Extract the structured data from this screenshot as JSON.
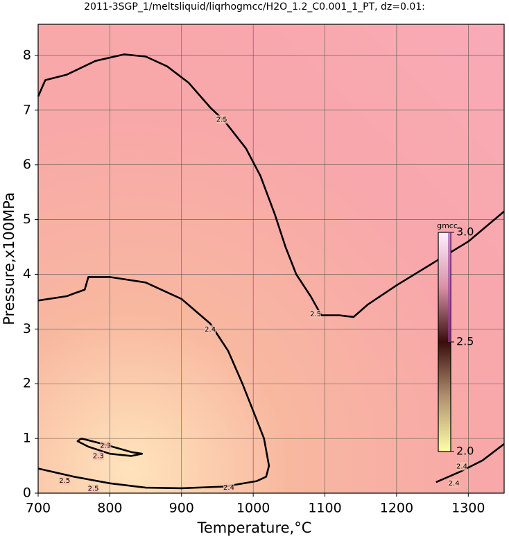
{
  "chart_data": {
    "type": "contour",
    "title": "2011-3SGP_1/meltsliquid/liqrhogmcc/H2O_1.2_C0.001_1_PT, dz=0.01:",
    "x_label": "Temperature,°C",
    "y_label": "Pressure,x100MPa",
    "xlim": [
      700,
      1350
    ],
    "ylim": [
      0,
      8.57
    ],
    "xticks": [
      700,
      800,
      900,
      1000,
      1100,
      1200,
      1300
    ],
    "yticks": [
      0,
      1,
      2,
      3,
      4,
      5,
      6,
      7,
      8
    ],
    "grid": true,
    "contours": [
      {
        "level": 2.5,
        "x": [
          700,
          710,
          740,
          780,
          820,
          850,
          880,
          910,
          940,
          960,
          990,
          1010,
          1030,
          1045,
          1060,
          1080,
          1095,
          1120,
          1140,
          1160,
          1200,
          1250,
          1300,
          1350
        ],
        "y": [
          7.25,
          7.55,
          7.65,
          7.9,
          8.02,
          7.98,
          7.8,
          7.5,
          7.05,
          6.8,
          6.3,
          5.8,
          5.1,
          4.5,
          4.0,
          3.6,
          3.25,
          3.25,
          3.22,
          3.45,
          3.8,
          4.2,
          4.6,
          5.15
        ]
      },
      {
        "level": 2.4,
        "x": [
          700,
          740,
          750,
          765,
          770,
          800,
          850,
          900,
          940,
          965,
          985,
          1000,
          1015,
          1022,
          1018,
          1005,
          960,
          900,
          850,
          800,
          750,
          700
        ],
        "y": [
          3.52,
          3.6,
          3.65,
          3.72,
          3.95,
          3.95,
          3.85,
          3.55,
          3.1,
          2.6,
          2.0,
          1.5,
          1.0,
          0.5,
          0.3,
          0.22,
          0.12,
          0.09,
          0.1,
          0.18,
          0.3,
          0.45
        ]
      },
      {
        "level": 2.4,
        "x": [
          1255,
          1290,
          1320,
          1350
        ],
        "y": [
          0.2,
          0.4,
          0.6,
          0.9
        ]
      },
      {
        "level": 2.3,
        "x": [
          760,
          790,
          830,
          845,
          830,
          800,
          770,
          755,
          760
        ],
        "y": [
          1.0,
          0.9,
          0.75,
          0.72,
          0.68,
          0.72,
          0.85,
          0.95,
          1.0
        ]
      }
    ],
    "contour_labels": [
      {
        "value": 2.5,
        "x": 956,
        "y": 6.83
      },
      {
        "value": 2.5,
        "x": 1087,
        "y": 3.27
      },
      {
        "value": 2.4,
        "x": 940,
        "y": 2.99
      },
      {
        "value": 2.4,
        "x": 966,
        "y": 0.1
      },
      {
        "value": 2.3,
        "x": 794,
        "y": 0.87
      },
      {
        "value": 2.3,
        "x": 784,
        "y": 0.68
      },
      {
        "value": 2.4,
        "x": 1291,
        "y": 0.49
      },
      {
        "value": 2.4,
        "x": 1280,
        "y": 0.18
      },
      {
        "value": 2.5,
        "x": 737,
        "y": 0.23
      },
      {
        "value": 2.5,
        "x": 777,
        "y": 0.08
      }
    ],
    "colorbar": {
      "label": "gmcc",
      "lim": [
        2.0,
        3.0
      ],
      "ticks": [
        {
          "value": 2.0,
          "label": "2.0"
        },
        2.5,
        {
          "value": 3.0,
          "label": "3.0"
        }
      ],
      "colors": [
        "#ffffa8",
        "#b09070",
        "#3a0c0c",
        "#d890a8",
        "#fff0ff"
      ]
    }
  }
}
